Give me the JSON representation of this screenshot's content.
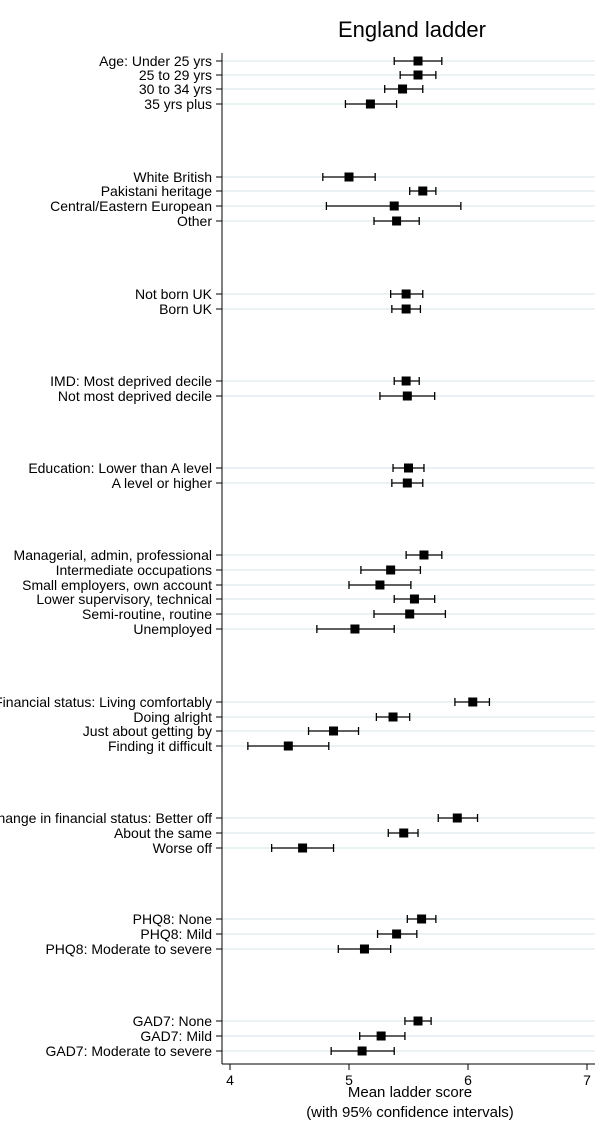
{
  "chart_data": {
    "type": "scatter",
    "title": "England ladder",
    "xlabel": "Mean ladder score",
    "xlabel_sub": "(with 95% confidence intervals)",
    "xlim": [
      4,
      7
    ],
    "xticks": [
      4,
      5,
      6,
      7
    ],
    "grid": "horizontal lines at each category",
    "error_bars": "95% confidence intervals",
    "categories": [
      {
        "label": "Age: Under 25 yrs",
        "mean": 5.58,
        "lo": 5.38,
        "hi": 5.78
      },
      {
        "label": "25 to 29 yrs",
        "mean": 5.58,
        "lo": 5.43,
        "hi": 5.73
      },
      {
        "label": "30 to 34 yrs",
        "mean": 5.45,
        "lo": 5.3,
        "hi": 5.62
      },
      {
        "label": "35 yrs plus",
        "mean": 5.18,
        "lo": 4.97,
        "hi": 5.4
      },
      {
        "label": "White British",
        "mean": 5.0,
        "lo": 4.78,
        "hi": 5.22
      },
      {
        "label": "Pakistani heritage",
        "mean": 5.62,
        "lo": 5.51,
        "hi": 5.73
      },
      {
        "label": "Central/Eastern European",
        "mean": 5.38,
        "lo": 4.81,
        "hi": 5.94
      },
      {
        "label": "Other",
        "mean": 5.4,
        "lo": 5.21,
        "hi": 5.59
      },
      {
        "label": "Not born UK",
        "mean": 5.48,
        "lo": 5.35,
        "hi": 5.62
      },
      {
        "label": "Born UK",
        "mean": 5.48,
        "lo": 5.36,
        "hi": 5.6
      },
      {
        "label": "IMD: Most deprived decile",
        "mean": 5.48,
        "lo": 5.38,
        "hi": 5.59
      },
      {
        "label": "Not most deprived decile",
        "mean": 5.49,
        "lo": 5.26,
        "hi": 5.72
      },
      {
        "label": "Education: Lower than A level",
        "mean": 5.5,
        "lo": 5.37,
        "hi": 5.63
      },
      {
        "label": "A level or higher",
        "mean": 5.49,
        "lo": 5.36,
        "hi": 5.62
      },
      {
        "label": "Managerial, admin, professional",
        "mean": 5.63,
        "lo": 5.48,
        "hi": 5.78
      },
      {
        "label": "Intermediate occupations",
        "mean": 5.35,
        "lo": 5.1,
        "hi": 5.6
      },
      {
        "label": "Small employers, own account",
        "mean": 5.26,
        "lo": 5.0,
        "hi": 5.52
      },
      {
        "label": "Lower supervisory, technical",
        "mean": 5.55,
        "lo": 5.38,
        "hi": 5.72
      },
      {
        "label": "Semi-routine, routine",
        "mean": 5.51,
        "lo": 5.21,
        "hi": 5.81
      },
      {
        "label": "Unemployed",
        "mean": 5.05,
        "lo": 4.73,
        "hi": 5.38
      },
      {
        "label": "Financial status: Living comfortably",
        "mean": 6.04,
        "lo": 5.89,
        "hi": 6.18
      },
      {
        "label": "Doing alright",
        "mean": 5.37,
        "lo": 5.23,
        "hi": 5.51
      },
      {
        "label": "Just about getting by",
        "mean": 4.87,
        "lo": 4.66,
        "hi": 5.08
      },
      {
        "label": "Finding it difficult",
        "mean": 4.49,
        "lo": 4.15,
        "hi": 4.83
      },
      {
        "label": "Change in financial status: Better off",
        "mean": 5.91,
        "lo": 5.75,
        "hi": 6.08
      },
      {
        "label": "About the same",
        "mean": 5.46,
        "lo": 5.33,
        "hi": 5.58
      },
      {
        "label": "Worse off",
        "mean": 4.61,
        "lo": 4.35,
        "hi": 4.87
      },
      {
        "label": "PHQ8: None",
        "mean": 5.61,
        "lo": 5.49,
        "hi": 5.73
      },
      {
        "label": "PHQ8: Mild",
        "mean": 5.4,
        "lo": 5.24,
        "hi": 5.57
      },
      {
        "label": "PHQ8: Moderate to severe",
        "mean": 5.13,
        "lo": 4.91,
        "hi": 5.35
      },
      {
        "label": "GAD7: None",
        "mean": 5.58,
        "lo": 5.47,
        "hi": 5.69
      },
      {
        "label": "GAD7: Mild",
        "mean": 5.27,
        "lo": 5.09,
        "hi": 5.47
      },
      {
        "label": "GAD7: Moderate to severe",
        "mean": 5.11,
        "lo": 4.85,
        "hi": 5.38
      }
    ]
  }
}
